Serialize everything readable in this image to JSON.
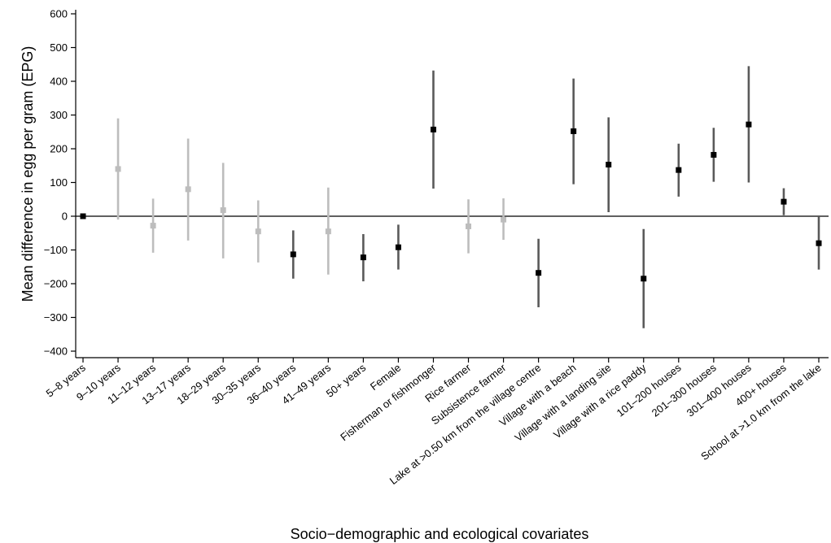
{
  "chart_data": {
    "type": "errorbar",
    "xlabel": "Socio−demographic and ecological covariates",
    "ylabel": "Mean difference in egg per gram (EPG)",
    "ylim": [
      -420,
      620
    ],
    "yticks": [
      600,
      500,
      400,
      300,
      200,
      100,
      0,
      -100,
      -200,
      -300,
      -400
    ],
    "ytick_labels": [
      "600",
      "500",
      "400",
      "300",
      "200",
      "100",
      "0",
      "−100",
      "−200",
      "−300",
      "−400"
    ],
    "colors": {
      "significant": "#000000",
      "significant_bar": "#5a5a5a",
      "non_significant": "#bdbdbd",
      "axis": "#000000"
    },
    "points": [
      {
        "label": "5–8 years",
        "y": 0,
        "lo": 0,
        "hi": 0,
        "significant": true
      },
      {
        "label": "9–10 years",
        "y": 140,
        "lo": -10,
        "hi": 290,
        "significant": false
      },
      {
        "label": "11–12 years",
        "y": -28,
        "lo": -108,
        "hi": 52,
        "significant": false
      },
      {
        "label": "13–17 years",
        "y": 80,
        "lo": -72,
        "hi": 230,
        "significant": false
      },
      {
        "label": "18–29 years",
        "y": 18,
        "lo": -125,
        "hi": 158,
        "significant": false
      },
      {
        "label": "30–35 years",
        "y": -45,
        "lo": -137,
        "hi": 47,
        "significant": false
      },
      {
        "label": "36–40 years",
        "y": -113,
        "lo": -185,
        "hi": -42,
        "significant": true
      },
      {
        "label": "41–49 years",
        "y": -45,
        "lo": -173,
        "hi": 85,
        "significant": false
      },
      {
        "label": "50+ years",
        "y": -122,
        "lo": -193,
        "hi": -53,
        "significant": true
      },
      {
        "label": "Female",
        "y": -92,
        "lo": -158,
        "hi": -25,
        "significant": true
      },
      {
        "label": "Fisherman or fishmonger",
        "y": 257,
        "lo": 82,
        "hi": 432,
        "significant": true
      },
      {
        "label": "Rice farmer",
        "y": -30,
        "lo": -110,
        "hi": 50,
        "significant": false
      },
      {
        "label": "Subsistence farmer",
        "y": -10,
        "lo": -70,
        "hi": 53,
        "significant": false
      },
      {
        "label": "Lake at >0.50 km from the village centre",
        "y": -168,
        "lo": -270,
        "hi": -67,
        "significant": true
      },
      {
        "label": "Village with a beach",
        "y": 252,
        "lo": 95,
        "hi": 408,
        "significant": true
      },
      {
        "label": "Village with a landing site",
        "y": 153,
        "lo": 12,
        "hi": 293,
        "significant": true
      },
      {
        "label": "Village with a rice paddy",
        "y": -185,
        "lo": -332,
        "hi": -38,
        "significant": true
      },
      {
        "label": "101–200 houses",
        "y": 137,
        "lo": 58,
        "hi": 215,
        "significant": true
      },
      {
        "label": "201–300 houses",
        "y": 182,
        "lo": 102,
        "hi": 262,
        "significant": true
      },
      {
        "label": "301–400 houses",
        "y": 272,
        "lo": 100,
        "hi": 445,
        "significant": true
      },
      {
        "label": "400+ houses",
        "y": 43,
        "lo": 3,
        "hi": 83,
        "significant": true
      },
      {
        "label": "School at >1.0 km from the lake",
        "y": -80,
        "lo": -158,
        "hi": -2,
        "significant": true
      }
    ]
  }
}
